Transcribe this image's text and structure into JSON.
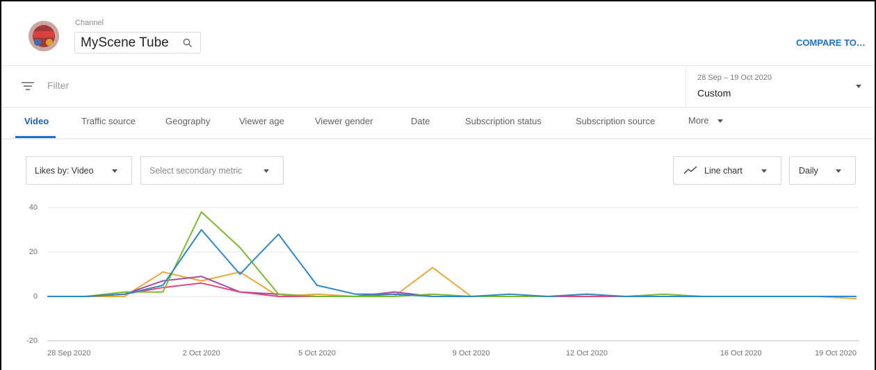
{
  "header": {
    "channel_label": "Channel",
    "channel_name": "MyScene Tube",
    "compare": "COMPARE TO…"
  },
  "filter": {
    "placeholder": "Filter",
    "date_range": "28 Sep – 19 Oct 2020",
    "date_mode": "Custom"
  },
  "tabs": [
    "Video",
    "Traffic source",
    "Geography",
    "Viewer age",
    "Viewer gender",
    "Date",
    "Subscription status",
    "Subscription source",
    "More"
  ],
  "controls": {
    "metric": "Likes by: Video",
    "secondary": "Select secondary metric",
    "chart_type": "Line chart",
    "interval": "Daily"
  },
  "chart_data": {
    "type": "line",
    "categories": [
      "28 Sep 2020",
      null,
      null,
      null,
      "2 Oct 2020",
      null,
      null,
      "5 Oct 2020",
      null,
      null,
      null,
      "9 Oct 2020",
      null,
      null,
      "12 Oct 2020",
      null,
      null,
      null,
      "16 Oct 2020",
      null,
      null,
      "19 Oct 2020"
    ],
    "series": [
      {
        "color": "#e8a838",
        "values": [
          0,
          0,
          0,
          11,
          7,
          11,
          0,
          1,
          0,
          0,
          13,
          0,
          0,
          0,
          0,
          0,
          0,
          0,
          0,
          0,
          0,
          -1
        ]
      },
      {
        "color": "#a64ca6",
        "values": [
          0,
          0,
          1,
          7,
          9,
          2,
          1,
          0,
          0,
          2,
          0,
          0,
          0,
          0,
          0,
          0,
          0,
          0,
          0,
          0,
          0,
          0
        ]
      },
      {
        "color": "#e0457b",
        "values": [
          0,
          0,
          1,
          4,
          6,
          2,
          0,
          0,
          0,
          1,
          0,
          0,
          0,
          0,
          0,
          0,
          0,
          0,
          0,
          0,
          0,
          0
        ]
      },
      {
        "color": "#7cb82f",
        "values": [
          0,
          0,
          2,
          2,
          38,
          22,
          1,
          0,
          0,
          0,
          1,
          0,
          0,
          0,
          1,
          0,
          1,
          0,
          0,
          0,
          0,
          0
        ]
      },
      {
        "color": "#2b88c8",
        "values": [
          0,
          0,
          1,
          5,
          30,
          10,
          28,
          5,
          1,
          1,
          0,
          0,
          1,
          0,
          1,
          0,
          0,
          0,
          0,
          0,
          0,
          0
        ]
      }
    ],
    "ylim": [
      -20,
      40
    ],
    "yticks": [
      -20,
      0,
      20,
      40
    ],
    "grid": true
  }
}
